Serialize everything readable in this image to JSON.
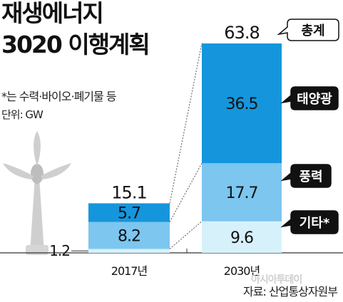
{
  "header": {
    "title_line1": "재생에너지",
    "title_line2": "3020 이행계획",
    "subtitle": "*는 수력·바이오·폐기물 등",
    "unit": "단위: GW"
  },
  "footer": {
    "source": "자료: 산업통상자원부",
    "watermark": "아시아투데이"
  },
  "colors": {
    "solar": "#1596dc",
    "wind": "#7cc6f0",
    "other": "#d7f1fb",
    "bubble": "#111111"
  },
  "chart_data": {
    "type": "bar",
    "stacked": true,
    "categories": [
      "2017년",
      "2030년"
    ],
    "series": [
      {
        "name": "기타*",
        "values": [
          1.2,
          9.6
        ]
      },
      {
        "name": "풍력",
        "values": [
          8.2,
          17.7
        ]
      },
      {
        "name": "태양광",
        "values": [
          5.7,
          36.5
        ]
      }
    ],
    "totals": [
      15.1,
      63.8
    ],
    "total_label": "총계",
    "ylim": [
      0,
      63.8
    ]
  }
}
